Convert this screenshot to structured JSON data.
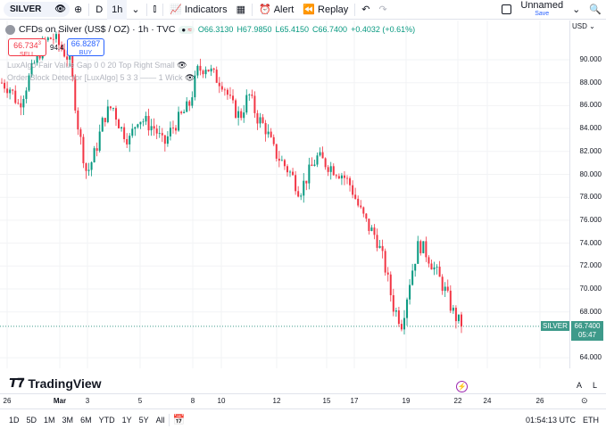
{
  "toolbar": {
    "symbol": "SILVER",
    "interval_d": "D",
    "interval_1h": "1h",
    "indicators": "Indicators",
    "alert": "Alert",
    "replay": "Replay",
    "layout_name": "Unnamed",
    "save": "Save"
  },
  "legend": {
    "title": "CFDs on Silver (US$ / OZ) · 1h · TVC",
    "open": "O66.3130",
    "high": "H67.9850",
    "low": "L65.4150",
    "close": "C66.7400",
    "change": "+0.4032 (+0.61%)"
  },
  "trade": {
    "sell_price": "66.734",
    "sell_sup": "3",
    "sell": "SELL",
    "spread": "94.4",
    "buy_price": "66.8287",
    "buy": "BUY"
  },
  "indicators": [
    "LuxAlgo Fair Value Gap 0 0 20 Top Right Small",
    "Order Block Detector [LuxAlgo] 5 3 3 —— 1 Wick"
  ],
  "currency": "USD",
  "last_price": {
    "symbol": "SILVER",
    "price": "66.7400",
    "countdown": "05:47"
  },
  "branding": "TradingView",
  "scale_buttons": [
    "A",
    "L"
  ],
  "ranges": [
    "1D",
    "5D",
    "1M",
    "3M",
    "6M",
    "YTD",
    "1Y",
    "5Y",
    "All"
  ],
  "clock": "01:54:13 UTC",
  "session": "ETH",
  "colors": {
    "up": "#089981",
    "down": "#f23645",
    "last": "#3e9a8a"
  },
  "chart_data": {
    "type": "candlestick",
    "ylim": [
      63,
      91
    ],
    "yticks": [
      "90.000",
      "88.000",
      "86.000",
      "84.000",
      "82.000",
      "80.000",
      "78.000",
      "76.000",
      "74.000",
      "72.000",
      "70.000",
      "68.000",
      "64.000"
    ],
    "xticks": [
      "26",
      "Mar",
      "3",
      "5",
      "8",
      "10",
      "12",
      "15",
      "17",
      "19",
      "22",
      "24",
      "26"
    ],
    "closes": [
      88,
      87.5,
      86,
      88,
      90,
      91.5,
      92,
      91,
      90,
      84,
      80,
      82,
      85,
      86,
      84,
      83,
      85,
      84.5,
      84,
      82.5,
      84,
      85,
      86,
      89,
      89.5,
      88.5,
      88,
      86,
      85,
      87,
      85,
      84,
      82,
      81,
      80,
      78.5,
      80,
      81.5,
      81,
      80.5,
      80,
      79,
      77,
      75.5,
      74.5,
      72,
      68.5,
      67,
      71,
      74,
      73,
      71.5,
      70,
      68,
      66.74
    ]
  }
}
